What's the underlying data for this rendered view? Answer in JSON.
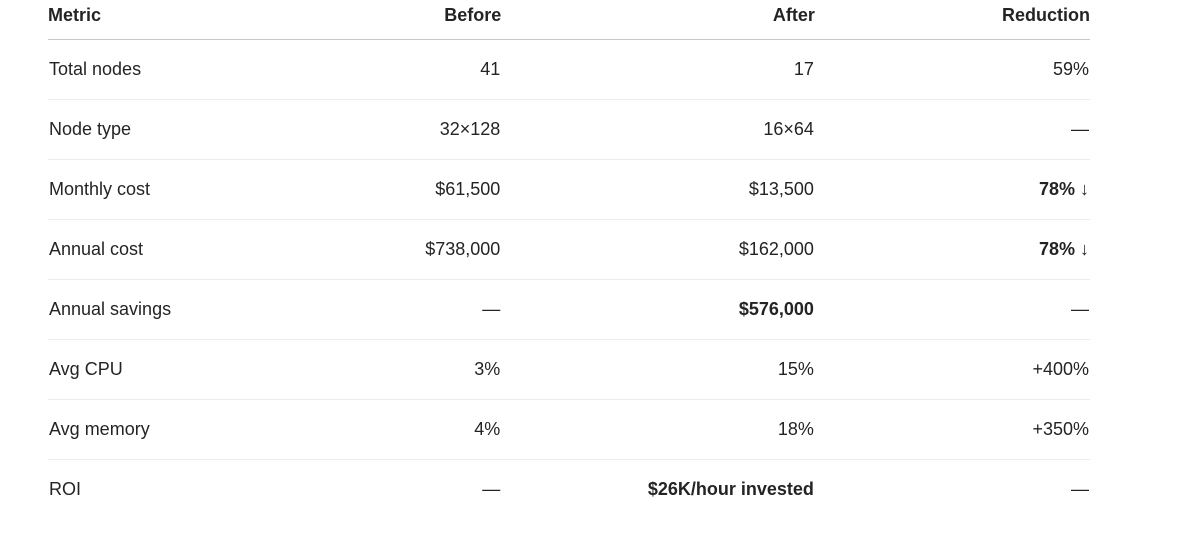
{
  "chart_data": {
    "type": "table",
    "columns": [
      "Metric",
      "Before",
      "After",
      "Reduction"
    ],
    "rows": [
      [
        "Total nodes",
        "41",
        "17",
        "59%"
      ],
      [
        "Node type",
        "32×128",
        "16×64",
        "—"
      ],
      [
        "Monthly cost",
        "$61,500",
        "$13,500",
        "78% ↓"
      ],
      [
        "Annual cost",
        "$738,000",
        "$162,000",
        "78% ↓"
      ],
      [
        "Annual savings",
        "—",
        "$576,000",
        "—"
      ],
      [
        "Avg CPU",
        "3%",
        "15%",
        "+400%"
      ],
      [
        "Avg memory",
        "4%",
        "18%",
        "+350%"
      ],
      [
        "ROI",
        "—",
        "$26K/hour invested",
        "—"
      ]
    ],
    "bold_cells": [
      [
        2,
        3
      ],
      [
        3,
        3
      ],
      [
        4,
        2
      ],
      [
        7,
        2
      ]
    ],
    "layout": {
      "header_border_color": "#c9c9c9",
      "row_border_color": "#ececec",
      "text_color": "#242424",
      "background_color": "#ffffff"
    }
  }
}
